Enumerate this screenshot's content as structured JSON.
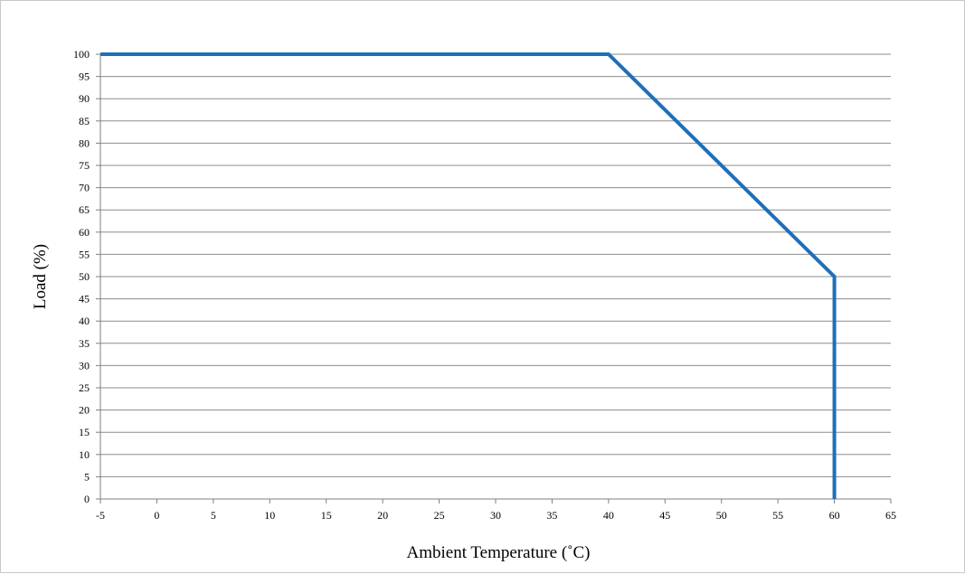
{
  "chart_data": {
    "type": "line",
    "title": "",
    "xlabel": "Ambient Temperature (˚C)",
    "ylabel": "Load (%)",
    "xlim": [
      -5,
      65
    ],
    "ylim": [
      0,
      100
    ],
    "x_ticks": [
      "-5",
      "0",
      "5",
      "10",
      "15",
      "20",
      "25",
      "30",
      "35",
      "40",
      "45",
      "50",
      "55",
      "60",
      "65"
    ],
    "y_ticks": [
      "0",
      "5",
      "10",
      "15",
      "20",
      "25",
      "30",
      "35",
      "40",
      "45",
      "50",
      "55",
      "60",
      "65",
      "70",
      "75",
      "80",
      "85",
      "90",
      "95",
      "100"
    ],
    "grid": "horizontal",
    "legend": "none",
    "series": [
      {
        "x": [
          -5,
          40,
          60,
          60
        ],
        "y": [
          100,
          100,
          50,
          0
        ],
        "color": "#1f6fba"
      }
    ],
    "colors": {
      "grid": "#8c8c8c",
      "axis": "#7f7f7f",
      "line": "#1f6fba"
    }
  }
}
